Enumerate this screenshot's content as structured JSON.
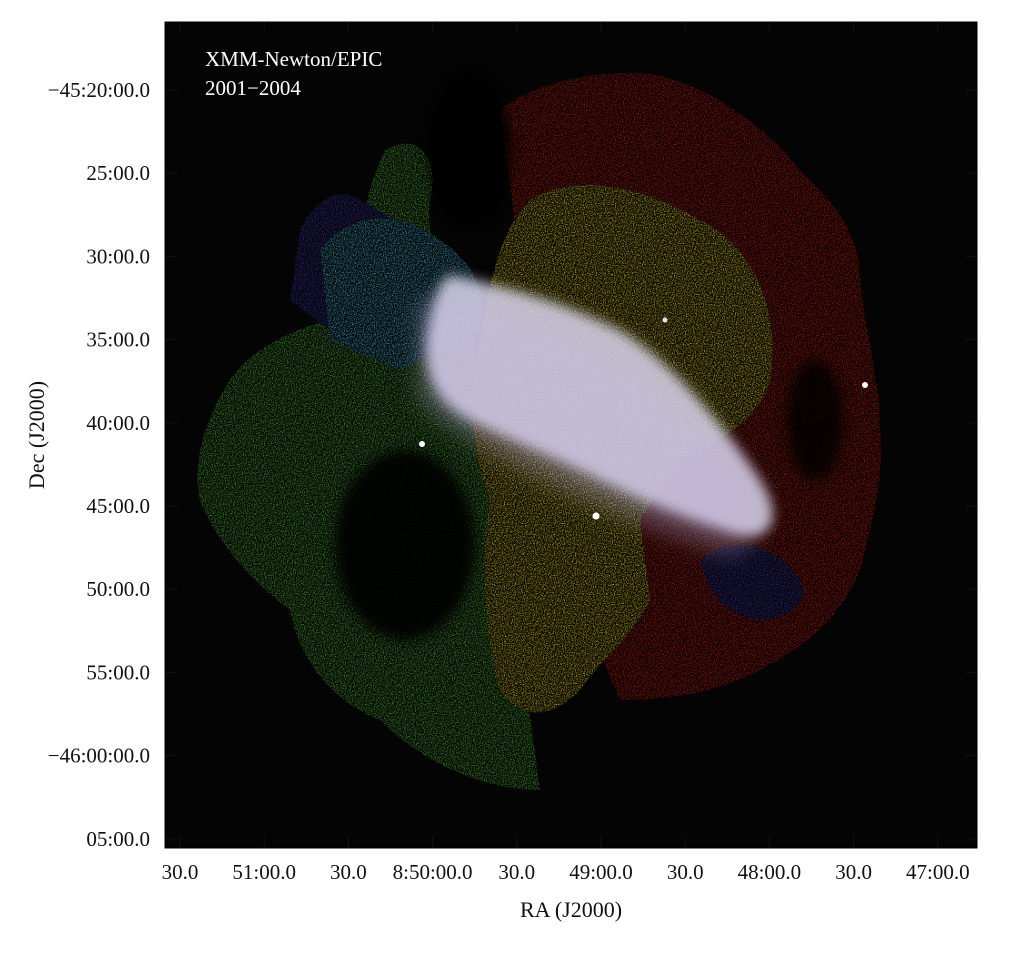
{
  "annotation": {
    "instrument": "XMM-Newton/EPIC",
    "years": "2001−2004"
  },
  "axes": {
    "y_title": "Dec (J2000)",
    "x_title": "RA (J2000)",
    "y_ticks": [
      "−45:20:00.0",
      "25:00.0",
      "30:00.0",
      "35:00.0",
      "40:00.0",
      "45:00.0",
      "50:00.0",
      "55:00.0",
      "−46:00:00.0",
      "05:00.0"
    ],
    "x_ticks": [
      "30.0",
      "51:00.0",
      "30.0",
      "8:50:00.0",
      "30.0",
      "49:00.0",
      "30.0",
      "48:00.0",
      "30.0",
      "47:00.0"
    ]
  },
  "colors": {
    "background": "#000000",
    "red": "#d2170c",
    "green": "#4cb82c",
    "yellow": "#e9d300",
    "blue": "#3b2fb0",
    "cyan": "#3fb6d6",
    "white_band": "#d9d6ec"
  }
}
